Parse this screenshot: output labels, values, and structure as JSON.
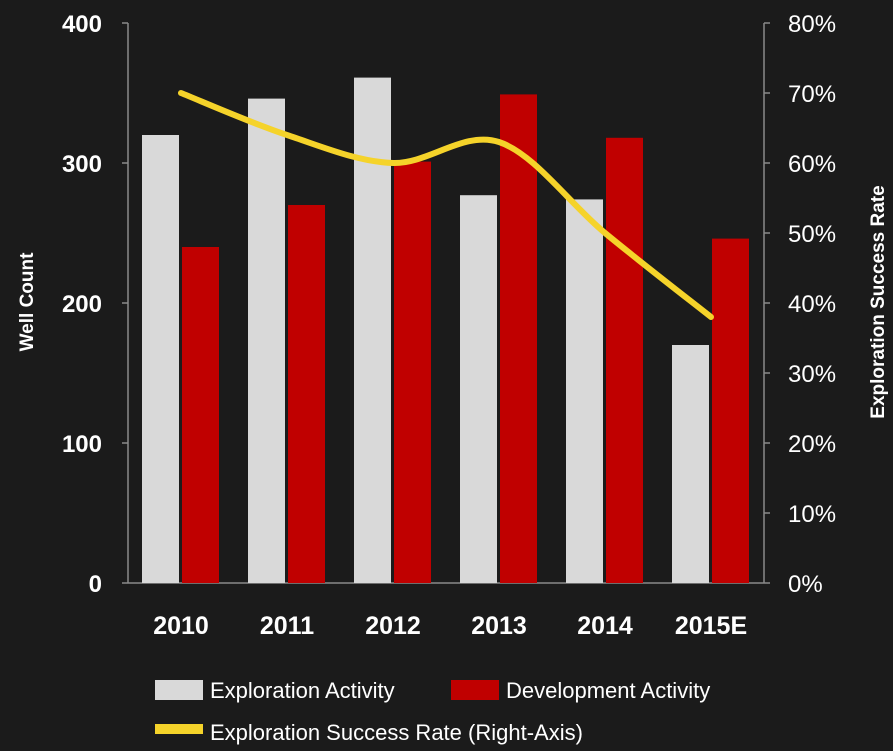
{
  "chart_data": {
    "type": "bar",
    "categories": [
      "2010",
      "2011",
      "2012",
      "2013",
      "2014",
      "2015E"
    ],
    "series": [
      {
        "name": "Exploration Activity",
        "type": "bar",
        "axis": "left",
        "color": "#d9d9d9",
        "values": [
          320,
          346,
          361,
          277,
          274,
          170
        ]
      },
      {
        "name": "Development Activity",
        "type": "bar",
        "axis": "left",
        "color": "#c00000",
        "values": [
          240,
          270,
          301,
          349,
          318,
          246
        ]
      },
      {
        "name": "Exploration Success Rate (Right-Axis)",
        "type": "line",
        "axis": "right",
        "color": "#f5d32a",
        "values": [
          70,
          64,
          60,
          63,
          50,
          38
        ]
      }
    ],
    "ylabel": "Well Count",
    "ylabel_right": "Exploration Success Rate",
    "ylim": [
      0,
      400
    ],
    "ylim_right": [
      0,
      80
    ],
    "yticks": [
      "0",
      "100",
      "200",
      "300",
      "400"
    ],
    "yticks_right": [
      "0%",
      "10%",
      "20%",
      "30%",
      "40%",
      "50%",
      "60%",
      "70%",
      "80%"
    ],
    "legend": [
      "Exploration Activity",
      "Development Activity",
      "Exploration Success Rate (Right-Axis)"
    ],
    "legend_position": "bottom",
    "grid": false,
    "background": "#1b1b1b"
  }
}
